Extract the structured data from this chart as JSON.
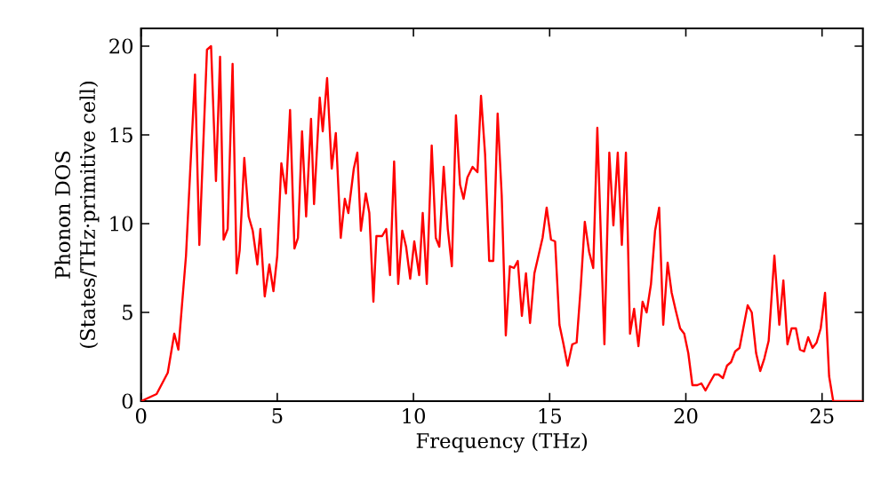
{
  "chart_data": {
    "type": "line",
    "xlabel": "Frequency (THz)",
    "ylabel": "Phonon DOS\n(States/THz·primitive cell)",
    "xlim": [
      0,
      26.5
    ],
    "ylim": [
      0,
      21
    ],
    "xticks": [
      0,
      5,
      10,
      15,
      20,
      25
    ],
    "yticks": [
      0,
      5,
      10,
      15,
      20
    ],
    "grid": false,
    "marker": "none",
    "line_style": "solid",
    "series": [
      {
        "color": "#ff0000",
        "x": [
          0,
          0.57,
          0.98,
          1.22,
          1.37,
          1.65,
          1.98,
          2.14,
          2.42,
          2.57,
          2.75,
          2.9,
          3.03,
          3.18,
          3.36,
          3.51,
          3.62,
          3.79,
          3.95,
          4.1,
          4.27,
          4.38,
          4.54,
          4.71,
          4.86,
          5.0,
          5.15,
          5.32,
          5.47,
          5.63,
          5.76,
          5.91,
          6.06,
          6.24,
          6.35,
          6.56,
          6.67,
          6.83,
          7.0,
          7.15,
          7.33,
          7.48,
          7.61,
          7.81,
          7.94,
          8.07,
          8.25,
          8.38,
          8.53,
          8.64,
          8.85,
          9.0,
          9.14,
          9.29,
          9.44,
          9.59,
          9.73,
          9.88,
          10.03,
          10.21,
          10.34,
          10.49,
          10.67,
          10.82,
          10.95,
          11.11,
          11.26,
          11.41,
          11.56,
          11.71,
          11.84,
          11.98,
          12.17,
          12.35,
          12.48,
          12.63,
          12.78,
          12.93,
          13.09,
          13.24,
          13.39,
          13.54,
          13.69,
          13.83,
          13.98,
          14.13,
          14.28,
          14.44,
          14.59,
          14.74,
          14.89,
          15.05,
          15.2,
          15.36,
          15.51,
          15.66,
          15.83,
          15.99,
          16.14,
          16.29,
          16.45,
          16.6,
          16.75,
          17.01,
          17.19,
          17.34,
          17.5,
          17.65,
          17.8,
          17.95,
          18.1,
          18.26,
          18.41,
          18.56,
          18.72,
          18.87,
          19.02,
          19.17,
          19.33,
          19.48,
          19.63,
          19.79,
          19.94,
          20.09,
          20.24,
          20.42,
          20.57,
          20.72,
          20.9,
          21.05,
          21.2,
          21.36,
          21.51,
          21.66,
          21.81,
          21.97,
          22.12,
          22.27,
          22.42,
          22.58,
          22.73,
          22.88,
          23.04,
          23.25,
          23.43,
          23.58,
          23.73,
          23.88,
          24.04,
          24.19,
          24.34,
          24.49,
          24.65,
          24.8,
          24.95,
          25.11,
          25.26,
          25.41,
          26.5
        ],
        "values": [
          0,
          0.4,
          1.6,
          3.8,
          2.9,
          8.2,
          18.4,
          8.8,
          19.8,
          20.0,
          12.4,
          19.4,
          9.1,
          9.7,
          19.0,
          7.2,
          8.5,
          13.7,
          10.4,
          9.6,
          7.7,
          9.7,
          5.9,
          7.7,
          6.2,
          8.2,
          13.4,
          11.7,
          16.4,
          8.6,
          9.2,
          15.2,
          10.4,
          15.9,
          11.1,
          17.1,
          15.2,
          18.2,
          13.1,
          15.1,
          9.2,
          11.4,
          10.6,
          13.1,
          14.0,
          9.6,
          11.7,
          10.6,
          5.6,
          9.3,
          9.3,
          9.7,
          7.1,
          13.5,
          6.6,
          9.6,
          8.7,
          6.9,
          9.0,
          7.1,
          10.6,
          6.6,
          14.4,
          9.2,
          8.7,
          13.2,
          9.7,
          7.6,
          16.1,
          12.2,
          11.4,
          12.6,
          13.2,
          12.9,
          17.2,
          13.9,
          7.9,
          7.9,
          16.2,
          11.6,
          3.7,
          7.6,
          7.5,
          7.9,
          4.8,
          7.2,
          4.4,
          7.2,
          8.2,
          9.2,
          10.9,
          9.1,
          9.0,
          4.3,
          3.2,
          2.0,
          3.2,
          3.3,
          6.4,
          10.1,
          8.4,
          7.5,
          15.4,
          3.2,
          14.0,
          9.9,
          14.0,
          8.8,
          14.0,
          3.8,
          5.2,
          3.1,
          5.6,
          5.0,
          6.6,
          9.6,
          10.9,
          4.3,
          7.8,
          6.1,
          5.1,
          4.1,
          3.8,
          2.7,
          0.9,
          0.9,
          1.0,
          0.6,
          1.1,
          1.5,
          1.5,
          1.3,
          2.0,
          2.2,
          2.8,
          3.0,
          4.2,
          5.4,
          5.0,
          2.7,
          1.7,
          2.4,
          3.4,
          8.2,
          4.3,
          6.8,
          3.2,
          4.1,
          4.1,
          2.9,
          2.8,
          3.6,
          3.0,
          3.3,
          4.1,
          6.1,
          1.4,
          0,
          0
        ]
      }
    ]
  }
}
